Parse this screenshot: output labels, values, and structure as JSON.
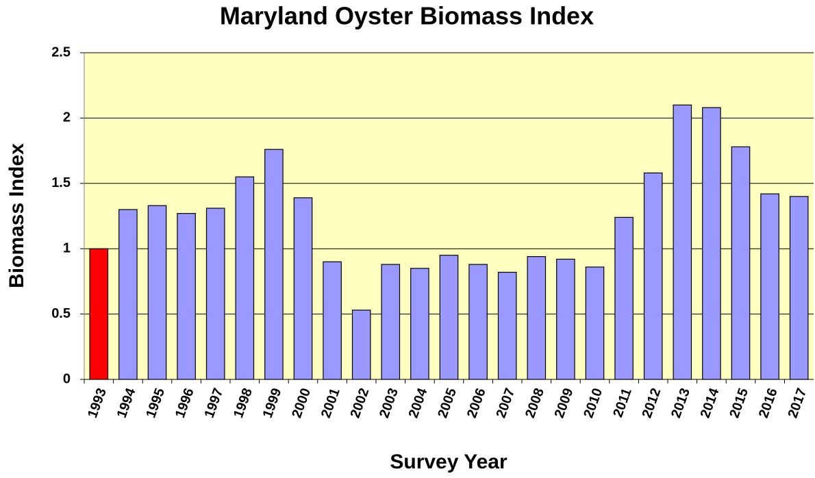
{
  "chart_data": {
    "type": "bar",
    "title": "Maryland Oyster Biomass Index",
    "x_label": "Survey Year",
    "y_label": "Biomass Index",
    "categories": [
      "1993",
      "1994",
      "1995",
      "1996",
      "1997",
      "1998",
      "1999",
      "2000",
      "2001",
      "2002",
      "2003",
      "2004",
      "2005",
      "2006",
      "2007",
      "2008",
      "2009",
      "2010",
      "2011",
      "2012",
      "2013",
      "2014",
      "2015",
      "2016",
      "2017"
    ],
    "values": [
      1.0,
      1.3,
      1.33,
      1.27,
      1.31,
      1.55,
      1.76,
      1.39,
      0.9,
      0.53,
      0.88,
      0.85,
      0.95,
      0.88,
      0.82,
      0.94,
      0.92,
      0.86,
      1.24,
      1.58,
      2.1,
      2.08,
      1.78,
      1.42,
      1.4
    ],
    "colors": [
      "#ff0000",
      "#9999ff",
      "#9999ff",
      "#9999ff",
      "#9999ff",
      "#9999ff",
      "#9999ff",
      "#9999ff",
      "#9999ff",
      "#9999ff",
      "#9999ff",
      "#9999ff",
      "#9999ff",
      "#9999ff",
      "#9999ff",
      "#9999ff",
      "#9999ff",
      "#9999ff",
      "#9999ff",
      "#9999ff",
      "#9999ff",
      "#9999ff",
      "#9999ff",
      "#9999ff",
      "#9999ff"
    ],
    "plot_background": "#ffffc0",
    "ylim": [
      0,
      2.5
    ],
    "yticks": [
      0,
      0.5,
      1,
      1.5,
      2,
      2.5
    ],
    "grid": true
  }
}
